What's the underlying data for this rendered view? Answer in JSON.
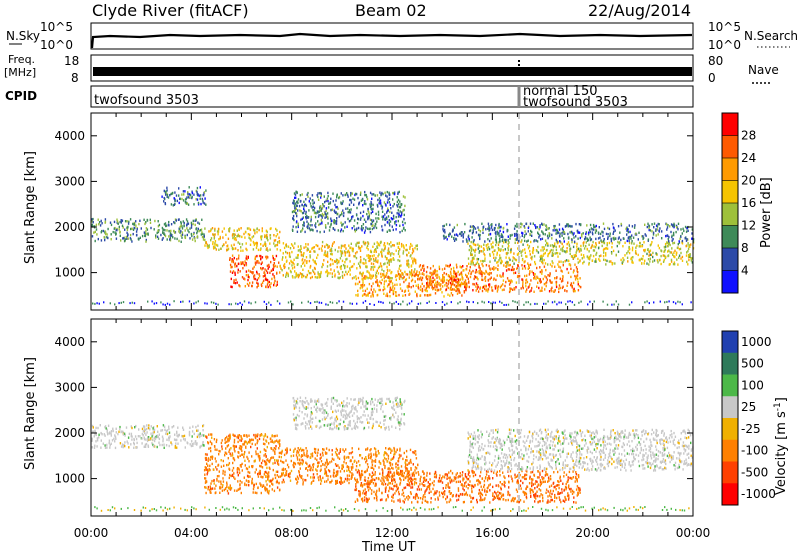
{
  "header": {
    "station": "Clyde River (fitACF)",
    "beam": "Beam 02",
    "date": "22/Aug/2014"
  },
  "noise_panel": {
    "left_label": "N.Sky",
    "left_ticks": [
      "10^5",
      "10^0"
    ],
    "right_ticks": [
      "10^5",
      "10^0"
    ],
    "right_label": "N.Search"
  },
  "freq_panel": {
    "left_label_1": "Freq.",
    "left_label_2": "[MHz]",
    "left_ticks": [
      "18",
      "8"
    ],
    "right_ticks": [
      "80",
      "0"
    ],
    "right_label": "Nave"
  },
  "cpid_panel": {
    "label": "CPID",
    "segments": [
      {
        "start_hour": 0,
        "end_hour": 17.2,
        "lines": [
          "twofsound 3503"
        ]
      },
      {
        "start_hour": 17.2,
        "end_hour": 24,
        "lines": [
          "normal 150",
          "twofsound 3503"
        ]
      }
    ]
  },
  "power_panel": {
    "ylabel": "Slant Range [km]",
    "cbar_label": "Power [dB]",
    "cbar_ticks": [
      "28",
      "24",
      "20",
      "16",
      "12",
      "8",
      "4"
    ],
    "cbar_colors": [
      "#ff0000",
      "#ff5a00",
      "#ff9a00",
      "#f5c400",
      "#9ec03a",
      "#3e8a58",
      "#2c4aa8",
      "#1010ff"
    ]
  },
  "velocity_panel": {
    "ylabel": "Slant Range [km]",
    "cbar_label": "Velocity [m s",
    "cbar_label_sup": "-1",
    "cbar_label_end": "]",
    "cbar_ticks": [
      "1000",
      "500",
      "100",
      "25",
      "-25",
      "-100",
      "-500",
      "-1000"
    ],
    "cbar_colors": [
      "#2040b0",
      "#2e7a5a",
      "#4cb848",
      "#c8c8c8",
      "#f0b000",
      "#ff8000",
      "#ff4000",
      "#ff0000"
    ]
  },
  "time_axis": {
    "label": "Time UT",
    "ticks": [
      "00:00",
      "04:00",
      "08:00",
      "12:00",
      "16:00",
      "20:00",
      "00:00"
    ]
  },
  "chart_data": [
    {
      "type": "heatmap",
      "title": "Clyde River (fitACF) Beam 02 22/Aug/2014",
      "variable": "Power",
      "xlabel": "Time UT",
      "ylabel": "Slant Range [km]",
      "x_range_hours": [
        0,
        24
      ],
      "ylim": [
        180,
        4500
      ],
      "yticks": [
        1000,
        2000,
        3000,
        4000
      ],
      "color_scale_db": [
        4,
        8,
        12,
        16,
        20,
        24,
        28
      ],
      "regions": [
        {
          "t_start": 0.0,
          "t_end": 4.5,
          "r_low": 1700,
          "r_high": 2200,
          "level_db": 10
        },
        {
          "t_start": 2.8,
          "t_end": 4.6,
          "r_low": 2500,
          "r_high": 2900,
          "level_db": 8
        },
        {
          "t_start": 4.5,
          "t_end": 7.5,
          "r_low": 1500,
          "r_high": 2000,
          "level_db": 18
        },
        {
          "t_start": 5.5,
          "t_end": 7.5,
          "r_low": 700,
          "r_high": 1400,
          "level_db": 26
        },
        {
          "t_start": 7.5,
          "t_end": 13.0,
          "r_low": 900,
          "r_high": 1700,
          "level_db": 18
        },
        {
          "t_start": 8.0,
          "t_end": 12.5,
          "r_low": 1900,
          "r_high": 2800,
          "level_db": 8
        },
        {
          "t_start": 10.5,
          "t_end": 15.0,
          "r_low": 500,
          "r_high": 1000,
          "level_db": 22
        },
        {
          "t_start": 13.0,
          "t_end": 19.5,
          "r_low": 600,
          "r_high": 1200,
          "level_db": 24
        },
        {
          "t_start": 15.0,
          "t_end": 24.0,
          "r_low": 1200,
          "r_high": 1700,
          "level_db": 16
        },
        {
          "t_start": 14.0,
          "t_end": 24.0,
          "r_low": 1700,
          "r_high": 2100,
          "level_db": 8
        }
      ]
    },
    {
      "type": "heatmap",
      "variable": "Velocity",
      "xlabel": "Time UT",
      "ylabel": "Slant Range [km]",
      "x_range_hours": [
        0,
        24
      ],
      "ylim": [
        180,
        4500
      ],
      "yticks": [
        1000,
        2000,
        3000,
        4000
      ],
      "color_scale_ms": [
        -1000,
        -500,
        -100,
        -25,
        25,
        100,
        500,
        1000
      ],
      "regions": [
        {
          "t_start": 0.0,
          "t_end": 4.5,
          "r_low": 1700,
          "r_high": 2200,
          "velocity": 0
        },
        {
          "t_start": 4.5,
          "t_end": 7.5,
          "r_low": 700,
          "r_high": 2000,
          "velocity": -300
        },
        {
          "t_start": 7.5,
          "t_end": 13.0,
          "r_low": 900,
          "r_high": 1700,
          "velocity": -300
        },
        {
          "t_start": 8.0,
          "t_end": 12.5,
          "r_low": 2100,
          "r_high": 2800,
          "velocity": 0
        },
        {
          "t_start": 10.5,
          "t_end": 19.5,
          "r_low": 500,
          "r_high": 1200,
          "velocity": -400
        },
        {
          "t_start": 15.0,
          "t_end": 24.0,
          "r_low": 1200,
          "r_high": 2100,
          "velocity": 0
        }
      ]
    }
  ]
}
